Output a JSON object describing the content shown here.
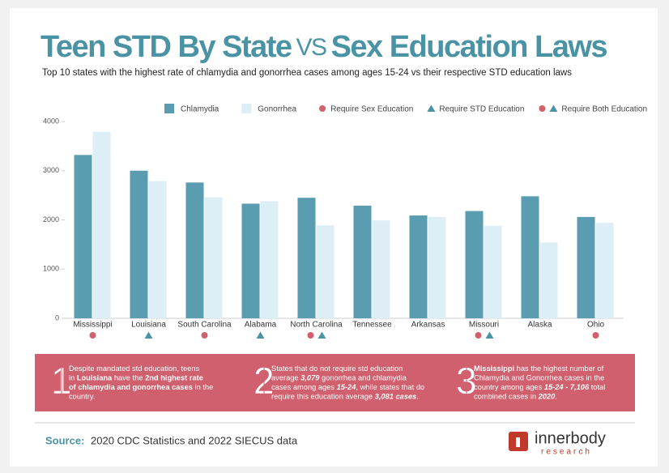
{
  "chart_data": {
    "type": "bar",
    "title": [
      "Teen STD By State",
      "VS",
      "Sex Education Laws"
    ],
    "subtitle": "Top 10 states with the highest rate of chlamydia and gonorrhea cases among ages 15-24 vs their respective STD education laws",
    "categories": [
      "Mississippi",
      "Louisiana",
      "South Carolina",
      "Alabama",
      "North Carolina",
      "Tennessee",
      "Arkansas",
      "Missouri",
      "Alaska",
      "Ohio"
    ],
    "series": [
      {
        "name": "Chlamydia",
        "color": "#5b9db0",
        "values": [
          3320,
          3000,
          2760,
          2330,
          2450,
          2290,
          2090,
          2180,
          2480,
          2060
        ]
      },
      {
        "name": "Gonorrhea",
        "color": "#ddeef6",
        "values": [
          3790,
          2790,
          2460,
          2380,
          1890,
          1990,
          2060,
          1880,
          1540,
          1940
        ]
      }
    ],
    "markers": [
      {
        "name": "Require Sex Education",
        "shape": "circle"
      },
      {
        "name": "Require STD Education",
        "shape": "triangle"
      },
      {
        "name": "Require Both Education",
        "shape": "both"
      }
    ],
    "marker_colors": {
      "circle": "#d0606e",
      "triangle": "#4a93a4"
    },
    "laws": [
      0,
      1,
      0,
      1,
      2,
      null,
      null,
      2,
      null,
      0
    ],
    "ylim": [
      0,
      4000
    ],
    "yticks": [
      0,
      1000,
      2000,
      3000,
      4000
    ],
    "notes": [
      {
        "num": "1",
        "lines": [
          [
            {
              "t": "Despite mandated std education, teens"
            }
          ],
          [
            {
              "t": "in "
            },
            {
              "t": "Louisiana",
              "s": "b"
            },
            {
              "t": " have the "
            },
            {
              "t": "2nd highest rate",
              "s": "b"
            }
          ],
          [
            {
              "t": "of chlamydia and gonorrhea cases",
              "s": "b"
            },
            {
              "t": " in the"
            }
          ],
          [
            {
              "t": "country."
            }
          ]
        ]
      },
      {
        "num": "2",
        "lines": [
          [
            {
              "t": "States that do not require std education"
            }
          ],
          [
            {
              "t": "average "
            },
            {
              "t": "3,079",
              "s": "bi"
            },
            {
              "t": " gonorrhea and chlamydia"
            }
          ],
          [
            {
              "t": "cases among ages "
            },
            {
              "t": "15-24",
              "s": "bi"
            },
            {
              "t": ", while states that do"
            }
          ],
          [
            {
              "t": "require this education average "
            },
            {
              "t": "3,081 cases",
              "s": "bi"
            },
            {
              "t": "."
            }
          ]
        ]
      },
      {
        "num": "3",
        "lines": [
          [
            {
              "t": "Mississippi",
              "s": "b"
            },
            {
              "t": " has the highest number of"
            }
          ],
          [
            {
              "t": "Chlamydia and Gonorrhea cases in the"
            }
          ],
          [
            {
              "t": "country among ages "
            },
            {
              "t": "15-24 - 7,106",
              "s": "bi"
            },
            {
              "t": " total"
            }
          ],
          [
            {
              "t": "combined cases in "
            },
            {
              "t": "2020",
              "s": "bi"
            },
            {
              "t": "."
            }
          ]
        ]
      }
    ],
    "source_label": "Source:",
    "source": "2020 CDC Statistics and 2022 SIECUS data",
    "logo": [
      "innerbody",
      "research"
    ]
  }
}
